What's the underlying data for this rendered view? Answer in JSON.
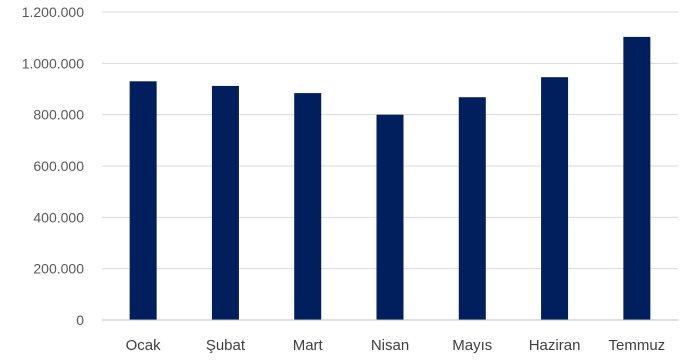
{
  "chart_data": {
    "type": "bar",
    "title": "",
    "xlabel": "",
    "ylabel": "",
    "categories": [
      "Ocak",
      "Şubat",
      "Mart",
      "Nisan",
      "Mayıs",
      "Haziran",
      "Temmuz"
    ],
    "values": [
      930000,
      912000,
      884000,
      800000,
      868000,
      946000,
      1103000
    ],
    "ylim": [
      0,
      1200000
    ],
    "yticks": [
      0,
      200000,
      400000,
      600000,
      800000,
      1000000,
      1200000
    ],
    "ytick_labels": [
      "0",
      "200.000",
      "400.000",
      "600.000",
      "800.000",
      "1.000.000",
      "1.200.000"
    ],
    "grid": true,
    "legend": "none",
    "colors": {
      "bar": "#001f5c",
      "grid": "#d9d9d9",
      "axis": "#bfbfbf"
    }
  }
}
